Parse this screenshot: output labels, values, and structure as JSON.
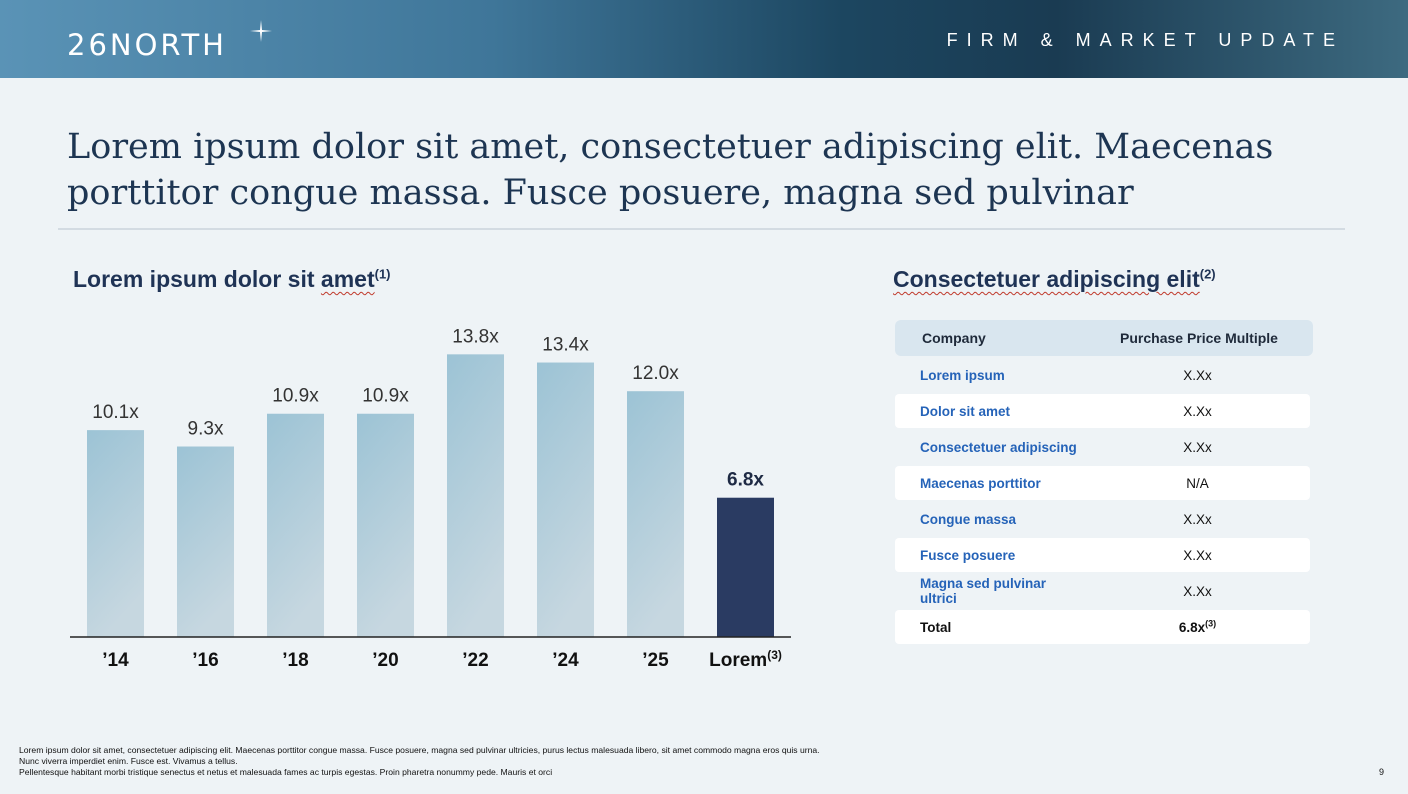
{
  "header": {
    "logo": "26NORTH",
    "title": "FIRM & MARKET UPDATE"
  },
  "headline": "Lorem ipsum dolor sit amet, consectetuer adipiscing elit. Maecenas porttitor congue massa. Fusce posuere, magna sed pulvinar",
  "chart_section": {
    "title": "Lorem ipsum dolor sit",
    "title_end": "amet",
    "title_note": "(1)"
  },
  "chart_data": {
    "type": "bar",
    "categories": [
      "’14",
      "’16",
      "’18",
      "’20",
      "’22",
      "’24",
      "’25",
      "Lorem"
    ],
    "category_notes": [
      "",
      "",
      "",
      "",
      "",
      "",
      "",
      "(3)"
    ],
    "values": [
      10.1,
      9.3,
      10.9,
      10.9,
      13.8,
      13.4,
      12.0,
      6.8
    ],
    "value_labels": [
      "10.1x",
      "9.3x",
      "10.9x",
      "10.9x",
      "13.8x",
      "13.4x",
      "12.0x",
      "6.8x"
    ],
    "highlight_index": 7,
    "ylim": [
      0,
      14.5
    ],
    "colors": {
      "bar": "#9cc3d5",
      "highlight": "#2a3b62"
    },
    "grid": false
  },
  "table_section": {
    "title": "Consectetuer adipiscing elit",
    "title_note": "(2)",
    "headers": [
      "Company",
      "Purchase Price Multiple"
    ],
    "rows": [
      {
        "company": "Lorem ipsum",
        "multiple": "X.Xx"
      },
      {
        "company": "Dolor sit amet",
        "multiple": "X.Xx"
      },
      {
        "company": "Consectetuer adipiscing",
        "multiple": "X.Xx"
      },
      {
        "company": "Maecenas porttitor",
        "multiple": "N/A"
      },
      {
        "company": "Congue massa",
        "multiple": "X.Xx"
      },
      {
        "company": "Fusce posuere",
        "multiple": "X.Xx"
      },
      {
        "company": "Magna sed pulvinar ultrici",
        "multiple": "X.Xx"
      }
    ],
    "total": {
      "label": "Total",
      "value": "6.8x",
      "note": "(3)"
    }
  },
  "footnotes": [
    "Lorem ipsum dolor sit amet, consectetuer adipiscing elit. Maecenas porttitor congue massa. Fusce posuere, magna sed pulvinar ultricies, purus lectus malesuada libero, sit amet commodo magna eros quis urna.",
    "Nunc viverra imperdiet enim. Fusce est. Vivamus a tellus.",
    "Pellentesque habitant morbi tristique senectus et netus et malesuada fames ac turpis egestas. Proin pharetra nonummy pede. Mauris et orci"
  ],
  "page_number": "9"
}
